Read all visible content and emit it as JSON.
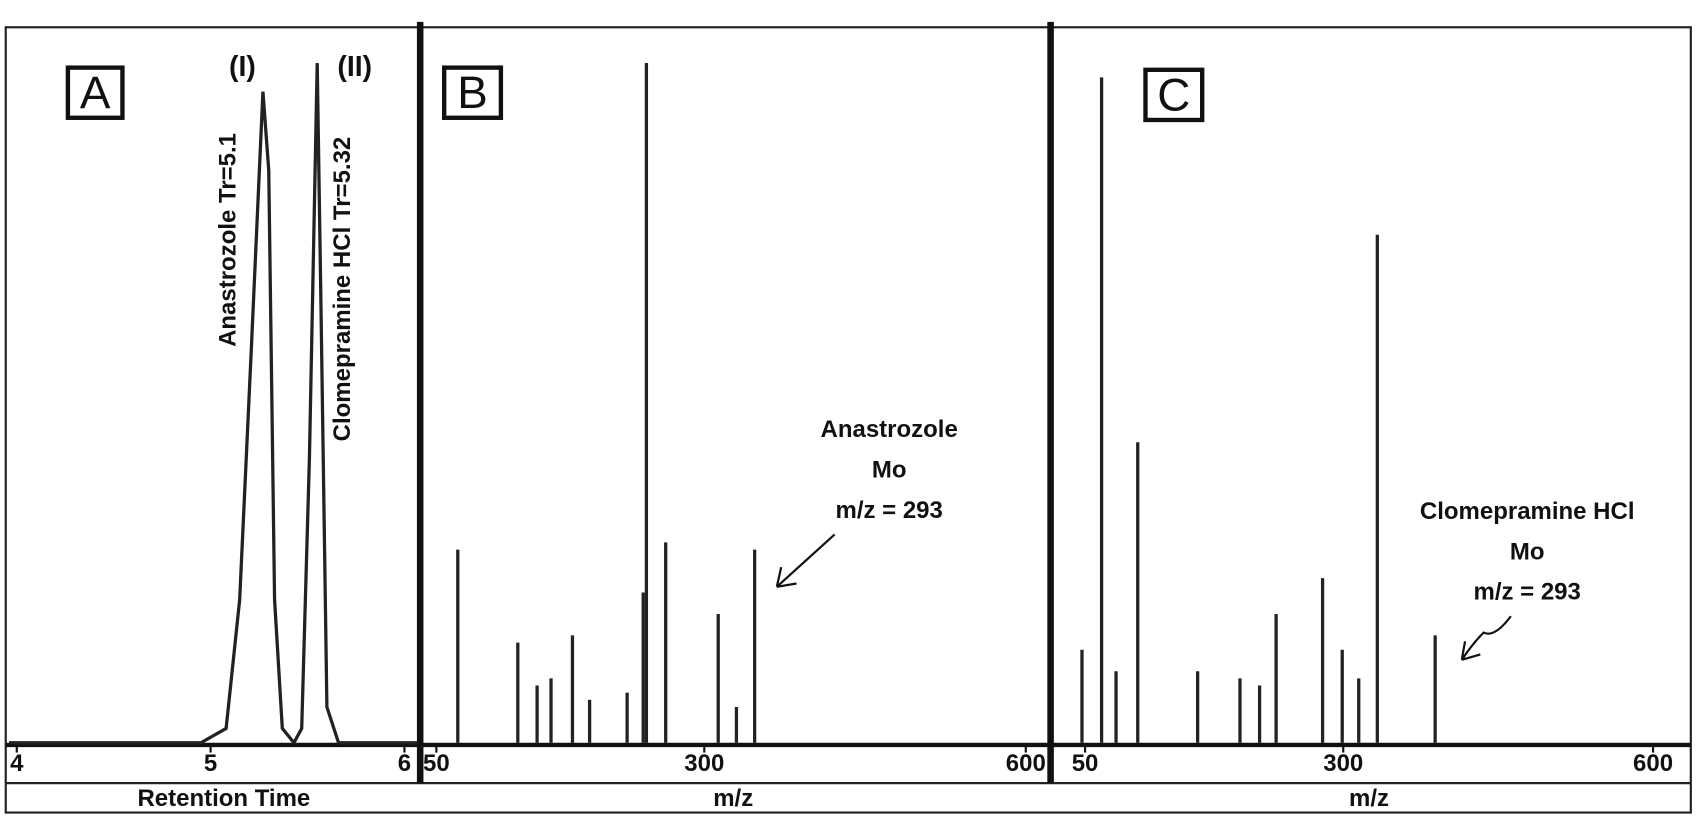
{
  "chart_data": [
    {
      "type": "line",
      "panel_label": "A",
      "xlabel": "Retention Time",
      "peak_labels": [
        "(I)",
        "(II)"
      ],
      "peak_names": [
        "Anastrozole Tr=5.1",
        "Clomepramine HCl Tr=5.32"
      ],
      "xlim": [
        3.96,
        6.07
      ],
      "xticks": [
        4,
        5,
        6
      ],
      "ylim": [
        0,
        100
      ],
      "color": "#222222",
      "x": [
        3.96,
        4.95,
        5.08,
        5.15,
        5.21,
        5.27,
        5.3,
        5.33,
        5.37,
        5.43,
        5.47,
        5.51,
        5.55,
        5.57,
        5.6,
        5.66,
        6.07
      ],
      "values": [
        0,
        0,
        2,
        20,
        55,
        91,
        80,
        20,
        2,
        0,
        2,
        40,
        95,
        60,
        5,
        0,
        0
      ]
    },
    {
      "type": "bar",
      "panel_label": "B",
      "xlabel": "m/z",
      "annotation": [
        "Anastrozole",
        "Mo",
        "m/z = 293"
      ],
      "xlim": [
        40,
        615
      ],
      "xticks": [
        50,
        300,
        600
      ],
      "ylim": [
        0,
        100
      ],
      "color": "#222222",
      "x": [
        70,
        126,
        144,
        157,
        177,
        193,
        228,
        243,
        246,
        264,
        313,
        330,
        347
      ],
      "values": [
        27,
        14,
        8,
        9,
        15,
        6,
        7,
        21,
        95,
        28,
        18,
        5,
        27
      ]
    },
    {
      "type": "bar",
      "panel_label": "C",
      "xlabel": "m/z",
      "annotation": [
        "Clomepramine HCl",
        "Mo",
        "m/z = 293"
      ],
      "xlim": [
        24,
        626
      ],
      "xticks": [
        50,
        300,
        600
      ],
      "ylim": [
        0,
        100
      ],
      "color": "#222222",
      "x": [
        47,
        66,
        80,
        101,
        159,
        200,
        219,
        235,
        280,
        299,
        315,
        333,
        389
      ],
      "values": [
        13,
        93,
        10,
        42,
        10,
        9,
        8,
        18,
        23,
        13,
        9,
        71,
        15
      ]
    }
  ]
}
